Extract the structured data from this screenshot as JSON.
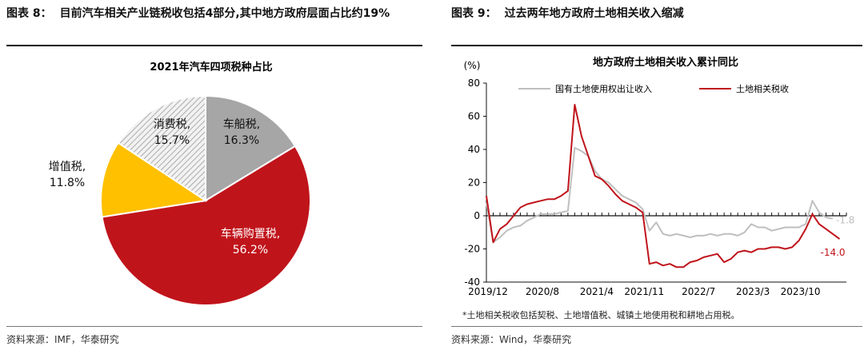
{
  "left": {
    "figure_label": "图表 8：",
    "figure_title": "目前汽车相关产业链税收包括4部分,其中地方政府层面占比约19%",
    "source": "资料来源：IMF，华泰研究",
    "chart_data": {
      "type": "pie",
      "title": "2021年汽车四项税种占比",
      "slices": [
        {
          "label": "车船税",
          "value": 16.3,
          "value_text": "16.3%",
          "color": "#a6a6a6",
          "text_color": "#111111"
        },
        {
          "label": "车辆购置税",
          "value": 56.2,
          "value_text": "56.2%",
          "color": "#c0141b",
          "text_color": "#ffffff"
        },
        {
          "label": "增值税",
          "value": 11.8,
          "value_text": "11.8%",
          "color": "#ffc000",
          "text_color": "#111111"
        },
        {
          "label": "消费税",
          "value": 15.7,
          "value_text": "15.7%",
          "color": "#d0d0d0",
          "text_color": "#111111",
          "hatched": true
        }
      ]
    }
  },
  "right": {
    "figure_label": "图表 9：",
    "figure_title": "过去两年地方政府土地相关收入缩减",
    "source": "资料来源：Wind，华泰研究",
    "note": "*土地相关税收包括契税、土地增值税、城镇土地使用税和耕地占用税。",
    "chart_data": {
      "type": "line",
      "title": "地方政府土地相关收入累计同比",
      "ylabel": "(%)",
      "ylim": [
        -40,
        80
      ],
      "yticks": [
        -40,
        -20,
        0,
        20,
        40,
        60,
        80
      ],
      "xlim": [
        0,
        53
      ],
      "x_ticks": [
        {
          "index": 0,
          "label": "2019/12"
        },
        {
          "index": 8,
          "label": "2020/8"
        },
        {
          "index": 16,
          "label": "2021/4"
        },
        {
          "index": 23,
          "label": "2021/11"
        },
        {
          "index": 31,
          "label": "2022/7"
        },
        {
          "index": 39,
          "label": "2023/3"
        },
        {
          "index": 46,
          "label": "2023/10"
        }
      ],
      "series": [
        {
          "name": "国有土地使用权出让收入",
          "color": "#bfbfbf",
          "end_label": "-1.8",
          "values": [
            8,
            -16,
            -13,
            -9,
            -7,
            -6,
            -3,
            -1,
            1,
            1,
            1,
            2,
            3,
            41,
            39,
            36,
            27,
            22,
            20,
            16,
            12,
            10,
            8,
            4,
            -9,
            -4,
            -11,
            -12,
            -11,
            -12,
            -13,
            -12,
            -12,
            -11,
            -12,
            -11,
            -11,
            -12,
            -10,
            -5,
            -7,
            -7,
            -9,
            -8,
            -7,
            -7,
            -7,
            -5,
            9,
            2,
            -1,
            -1.8
          ]
        },
        {
          "name": "土地相关税收",
          "color": "#c0141b",
          "end_label": "-14.0",
          "values": [
            12,
            -16,
            -8,
            -5,
            0,
            5,
            7,
            8,
            9,
            10,
            10,
            12,
            15,
            67,
            48,
            36,
            24,
            22,
            18,
            13,
            9,
            7,
            5,
            2,
            -29,
            -28,
            -30,
            -29,
            -31,
            -31,
            -28,
            -27,
            -25,
            -24,
            -23,
            -28,
            -26,
            -22,
            -21,
            -22,
            -20,
            -20,
            -19,
            -19,
            -20,
            -19,
            -15,
            -8,
            1,
            -5,
            -8,
            -11,
            -14
          ]
        }
      ]
    }
  }
}
